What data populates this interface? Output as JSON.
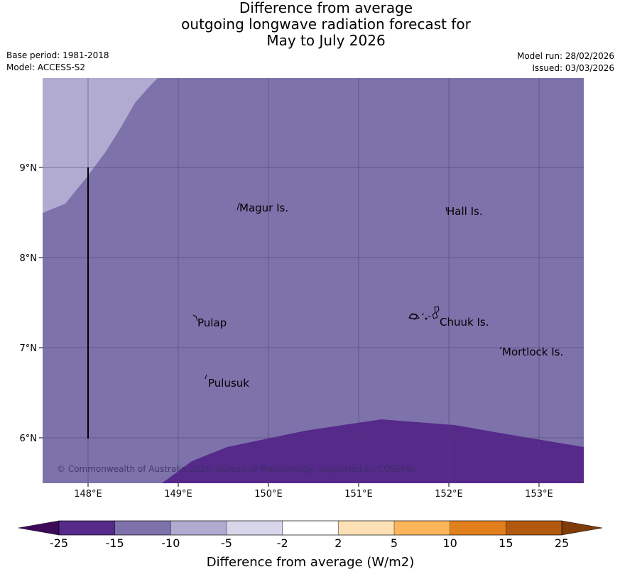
{
  "title": {
    "line1": "Difference from average",
    "line2": "outgoing longwave radiation forecast for",
    "line3": "May to July 2026"
  },
  "meta": {
    "base_period": "Base period: 1981-2018",
    "model": "Model: ACCESS-S2",
    "model_run": "Model run: 28/02/2026",
    "issued": "Issued: 03/03/2026"
  },
  "map": {
    "lon_ticks": [
      "148°E",
      "149°E",
      "150°E",
      "151°E",
      "152°E",
      "153°E"
    ],
    "lat_ticks": [
      "9°N",
      "8°N",
      "7°N",
      "6°N"
    ],
    "places": [
      {
        "name": "Magur Is.",
        "lon": 149.67,
        "lat": 8.58
      },
      {
        "name": "Hall Is.",
        "lon": 151.97,
        "lat": 8.58
      },
      {
        "name": "Pulap",
        "lon": 149.18,
        "lat": 7.35
      },
      {
        "name": "Chuuk Is.",
        "lon": 151.85,
        "lat": 7.35
      },
      {
        "name": "Mortlock Is.",
        "lon": 152.58,
        "lat": 7.0
      },
      {
        "name": "Pulusuk",
        "lon": 149.3,
        "lat": 6.7
      }
    ],
    "copyright": "© Commonwealth of Australia 2026, Bureau of Meteorology, supported by COSPPac",
    "colors": {
      "very_low": "#552a8a",
      "low": "#7e72ab",
      "moderate": "#b1abd1",
      "ocean_default": "#7e72ab"
    }
  },
  "colorbar": {
    "tick_labels": [
      "-25",
      "-15",
      "-10",
      "-5",
      "-2",
      "2",
      "5",
      "10",
      "15",
      "25"
    ],
    "bins": [
      "#552a8a",
      "#7e72ab",
      "#b1abd1",
      "#d7d6ea",
      "#ffffff",
      "#fde0b5",
      "#fcb55a",
      "#e1801d",
      "#b15a0f"
    ],
    "extend_low_color": "#3d0a5a",
    "extend_high_color": "#7f3b08",
    "label": "Difference from average (W/m2)"
  }
}
